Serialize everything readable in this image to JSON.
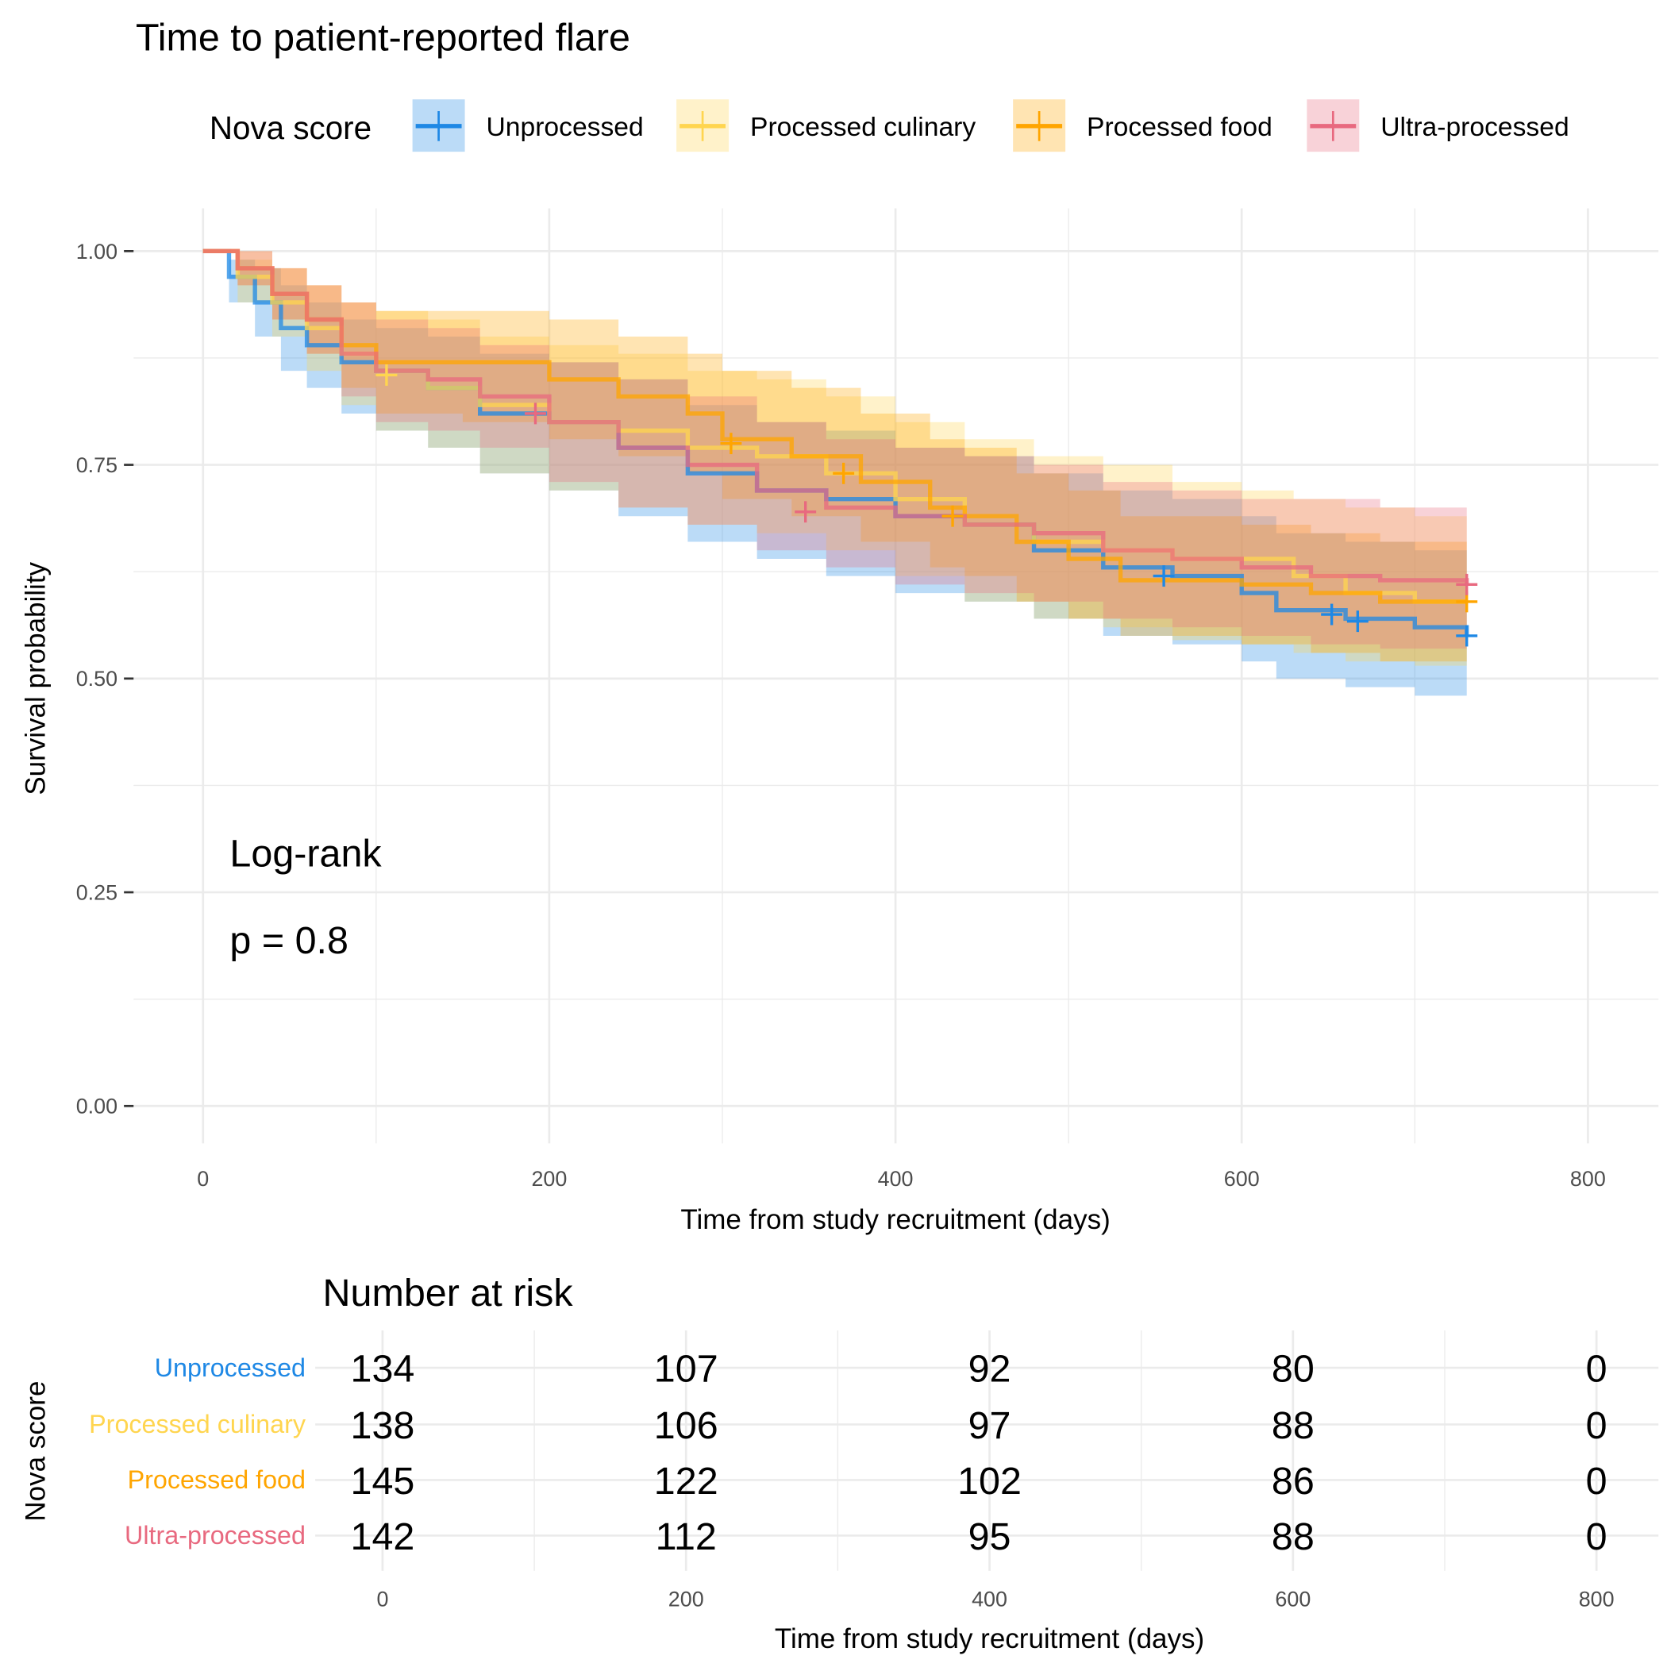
{
  "chart_data": {
    "type": "line",
    "subtype": "kaplan-meier step curves with confidence bands",
    "title": "Time to patient-reported flare",
    "xlabel": "Time from study recruitment (days)",
    "ylabel": "Survival probability",
    "xlim": [
      0,
      800
    ],
    "ylim": [
      0,
      1
    ],
    "x_ticks": [
      0,
      200,
      400,
      600,
      800
    ],
    "y_ticks": [
      0,
      0.25,
      0.5,
      0.75,
      1
    ],
    "y_tick_labels": [
      "0.00",
      "0.25",
      "0.50",
      "0.75",
      "1.00"
    ],
    "grid": true,
    "legend": {
      "title": "Nova score",
      "placement": "top"
    },
    "annotation": {
      "line1": "Log-rank",
      "line2": "p = 0.8"
    },
    "series": [
      {
        "name": "Unprocessed",
        "color": "#1E88E5",
        "x": [
          0,
          15,
          30,
          45,
          60,
          80,
          100,
          130,
          160,
          200,
          240,
          280,
          320,
          360,
          400,
          440,
          480,
          520,
          560,
          600,
          620,
          660,
          700,
          730
        ],
        "y": [
          1.0,
          0.97,
          0.94,
          0.91,
          0.89,
          0.87,
          0.86,
          0.84,
          0.81,
          0.8,
          0.77,
          0.74,
          0.72,
          0.71,
          0.69,
          0.68,
          0.65,
          0.63,
          0.62,
          0.6,
          0.58,
          0.57,
          0.56,
          0.55
        ],
        "lower": [
          1.0,
          0.94,
          0.9,
          0.86,
          0.84,
          0.81,
          0.79,
          0.77,
          0.74,
          0.72,
          0.69,
          0.66,
          0.64,
          0.62,
          0.6,
          0.59,
          0.57,
          0.55,
          0.54,
          0.52,
          0.5,
          0.49,
          0.48,
          0.475
        ],
        "upper": [
          1.0,
          0.99,
          0.98,
          0.96,
          0.94,
          0.92,
          0.91,
          0.9,
          0.88,
          0.87,
          0.85,
          0.82,
          0.8,
          0.79,
          0.77,
          0.76,
          0.74,
          0.72,
          0.71,
          0.69,
          0.67,
          0.66,
          0.65,
          0.64
        ],
        "censored": [
          [
            555,
            0.62
          ],
          [
            652,
            0.575
          ],
          [
            667,
            0.567
          ],
          [
            730,
            0.55
          ]
        ]
      },
      {
        "name": "Processed culinary",
        "color": "#FFD54F",
        "x": [
          0,
          20,
          40,
          60,
          80,
          100,
          130,
          160,
          200,
          240,
          280,
          320,
          360,
          400,
          440,
          480,
          520,
          560,
          600,
          630,
          660,
          700,
          730
        ],
        "y": [
          1.0,
          0.97,
          0.94,
          0.91,
          0.88,
          0.86,
          0.84,
          0.82,
          0.8,
          0.79,
          0.77,
          0.76,
          0.74,
          0.71,
          0.68,
          0.66,
          0.65,
          0.64,
          0.64,
          0.62,
          0.6,
          0.59,
          0.59
        ],
        "lower": [
          1.0,
          0.94,
          0.9,
          0.86,
          0.82,
          0.79,
          0.77,
          0.74,
          0.72,
          0.7,
          0.68,
          0.67,
          0.65,
          0.62,
          0.59,
          0.57,
          0.56,
          0.545,
          0.54,
          0.53,
          0.52,
          0.515,
          0.515
        ],
        "upper": [
          1.0,
          0.99,
          0.98,
          0.96,
          0.94,
          0.93,
          0.92,
          0.9,
          0.89,
          0.88,
          0.86,
          0.85,
          0.83,
          0.8,
          0.78,
          0.76,
          0.75,
          0.73,
          0.72,
          0.71,
          0.7,
          0.69,
          0.68
        ],
        "censored": [
          [
            106,
            0.855
          ]
        ]
      },
      {
        "name": "Processed food",
        "color": "#FFA500",
        "x": [
          0,
          20,
          40,
          60,
          80,
          100,
          150,
          200,
          240,
          280,
          300,
          340,
          380,
          420,
          440,
          470,
          500,
          530,
          600,
          640,
          680,
          730
        ],
        "y": [
          1.0,
          0.98,
          0.95,
          0.92,
          0.89,
          0.87,
          0.87,
          0.85,
          0.83,
          0.81,
          0.78,
          0.76,
          0.73,
          0.7,
          0.69,
          0.66,
          0.64,
          0.615,
          0.61,
          0.6,
          0.59,
          0.59
        ],
        "lower": [
          1.0,
          0.96,
          0.92,
          0.88,
          0.84,
          0.81,
          0.8,
          0.78,
          0.76,
          0.74,
          0.71,
          0.69,
          0.66,
          0.63,
          0.62,
          0.59,
          0.57,
          0.55,
          0.54,
          0.53,
          0.52,
          0.52
        ],
        "upper": [
          1.0,
          1.0,
          0.98,
          0.96,
          0.94,
          0.93,
          0.93,
          0.92,
          0.9,
          0.88,
          0.86,
          0.84,
          0.81,
          0.78,
          0.77,
          0.74,
          0.72,
          0.69,
          0.68,
          0.67,
          0.66,
          0.66
        ],
        "censored": [
          [
            305,
            0.775
          ],
          [
            370,
            0.74
          ],
          [
            433,
            0.69
          ],
          [
            730,
            0.59
          ]
        ]
      },
      {
        "name": "Ultra-processed",
        "color": "#E8697F",
        "x": [
          0,
          20,
          40,
          60,
          80,
          100,
          130,
          160,
          200,
          240,
          280,
          320,
          360,
          400,
          440,
          480,
          520,
          560,
          600,
          640,
          680,
          730
        ],
        "y": [
          1.0,
          0.98,
          0.95,
          0.92,
          0.88,
          0.86,
          0.85,
          0.83,
          0.8,
          0.77,
          0.75,
          0.72,
          0.7,
          0.69,
          0.68,
          0.67,
          0.65,
          0.64,
          0.63,
          0.62,
          0.615,
          0.61
        ],
        "lower": [
          1.0,
          0.96,
          0.92,
          0.88,
          0.83,
          0.8,
          0.79,
          0.77,
          0.73,
          0.7,
          0.68,
          0.65,
          0.63,
          0.61,
          0.6,
          0.59,
          0.57,
          0.56,
          0.55,
          0.54,
          0.535,
          0.53
        ],
        "upper": [
          1.0,
          1.0,
          0.98,
          0.96,
          0.94,
          0.92,
          0.91,
          0.89,
          0.87,
          0.85,
          0.83,
          0.8,
          0.78,
          0.77,
          0.76,
          0.75,
          0.73,
          0.72,
          0.71,
          0.71,
          0.7,
          0.695
        ],
        "censored": [
          [
            192,
            0.81
          ],
          [
            348,
            0.695
          ],
          [
            730,
            0.61
          ]
        ]
      }
    ],
    "risk_table": {
      "title": "Number at risk",
      "ylabel": "Nova score",
      "xlabel": "Time from study recruitment (days)",
      "x_ticks": [
        0,
        200,
        400,
        600,
        800
      ],
      "rows": [
        {
          "name": "Unprocessed",
          "color": "#1E88E5",
          "values": [
            134,
            107,
            92,
            80,
            0
          ]
        },
        {
          "name": "Processed culinary",
          "color": "#FFD54F",
          "values": [
            138,
            106,
            97,
            88,
            0
          ]
        },
        {
          "name": "Processed food",
          "color": "#FFA500",
          "values": [
            145,
            122,
            102,
            86,
            0
          ]
        },
        {
          "name": "Ultra-processed",
          "color": "#E8697F",
          "values": [
            142,
            112,
            95,
            88,
            0
          ]
        }
      ]
    }
  }
}
